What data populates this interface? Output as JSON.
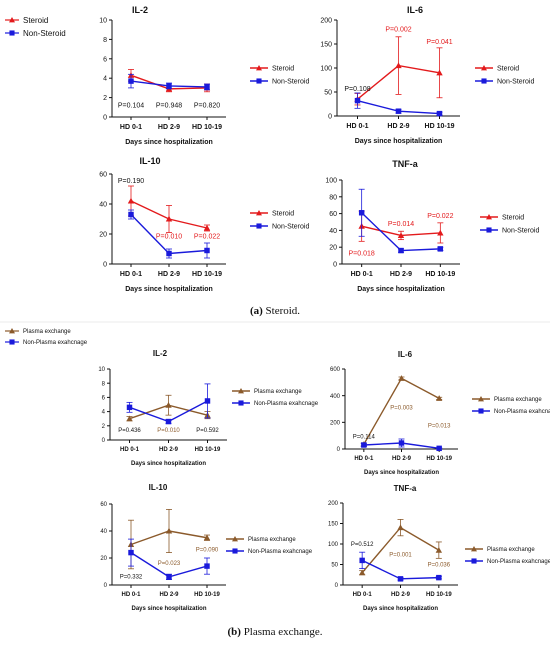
{
  "figure": {
    "caption_a_letter": "(a)",
    "caption_a_text": "Steroid.",
    "caption_b_letter": "(b)",
    "caption_b_text": "Plasma exchange.",
    "colors": {
      "red": "#e31a1c",
      "blue": "#1a1adb",
      "brown": "#8b5a2b"
    }
  },
  "top_legend": {
    "items": [
      "Steroid",
      "Non-Steroid"
    ]
  },
  "bottom_legend": {
    "items": [
      "Plasma exchange",
      "Non-Plasma exahcnage"
    ]
  },
  "chart_data": [
    {
      "type": "line",
      "id": "a-il2",
      "title": "IL-2",
      "xlabel": "Days since hospitalization",
      "categories": [
        "HD 0-1",
        "HD 2-9",
        "HD 10-19"
      ],
      "ylim": [
        0,
        10
      ],
      "yticks": [
        0,
        2,
        4,
        6,
        8,
        10
      ],
      "series": [
        {
          "name": "Steroid",
          "color": "#e31a1c",
          "marker": "triangle",
          "values": [
            4.3,
            2.9,
            3.0
          ],
          "err": [
            0.6,
            0.3,
            0.4
          ]
        },
        {
          "name": "Non-Steroid",
          "color": "#1a1adb",
          "marker": "square",
          "values": [
            3.7,
            3.2,
            3.1
          ],
          "err": [
            0.7,
            0.3,
            0.3
          ]
        }
      ],
      "pvalues": [
        {
          "text": "P=0.104",
          "cat": 0,
          "y": 1.0,
          "color": "#111111"
        },
        {
          "text": "P=0.948",
          "cat": 1,
          "y": 1.0,
          "color": "#111111"
        },
        {
          "text": "P=0.820",
          "cat": 2,
          "y": 1.0,
          "color": "#111111"
        }
      ],
      "legend": [
        "Steroid",
        "Non-Steroid"
      ]
    },
    {
      "type": "line",
      "id": "a-il6",
      "title": "IL-6",
      "xlabel": "Days since hospitalization",
      "categories": [
        "HD 0-1",
        "HD 2-9",
        "HD 10-19"
      ],
      "ylim": [
        0,
        200
      ],
      "yticks": [
        0,
        50,
        100,
        150,
        200
      ],
      "series": [
        {
          "name": "Steroid",
          "color": "#e31a1c",
          "marker": "triangle",
          "values": [
            35,
            105,
            90
          ],
          "err": [
            12,
            60,
            52
          ]
        },
        {
          "name": "Non-Steroid",
          "color": "#1a1adb",
          "marker": "square",
          "values": [
            32,
            10,
            5
          ],
          "err": [
            16,
            4,
            3
          ]
        }
      ],
      "pvalues": [
        {
          "text": "P=0.108",
          "cat": 0,
          "y": 52,
          "color": "#111111"
        },
        {
          "text": "P=0.002",
          "cat": 1,
          "y": 176,
          "color": "#e31a1c"
        },
        {
          "text": "P=0.041",
          "cat": 2,
          "y": 150,
          "color": "#e31a1c"
        }
      ],
      "legend": [
        "Steroid",
        "Non-Steroid"
      ]
    },
    {
      "type": "line",
      "id": "a-il10",
      "title": "IL-10",
      "xlabel": "Days since hospitalization",
      "categories": [
        "HD 0-1",
        "HD 2-9",
        "HD 10-19"
      ],
      "ylim": [
        0,
        60
      ],
      "yticks": [
        0,
        20,
        40,
        60
      ],
      "series": [
        {
          "name": "Steroid",
          "color": "#e31a1c",
          "marker": "triangle",
          "values": [
            42,
            30,
            24
          ],
          "err": [
            10,
            9,
            2
          ]
        },
        {
          "name": "Non-Steroid",
          "color": "#1a1adb",
          "marker": "square",
          "values": [
            33,
            7,
            9
          ],
          "err": [
            3,
            3,
            5
          ]
        }
      ],
      "pvalues": [
        {
          "text": "P=0.190",
          "cat": 0,
          "y": 54,
          "color": "#111111"
        },
        {
          "text": "P=0.010",
          "cat": 1,
          "y": 17,
          "color": "#e31a1c"
        },
        {
          "text": "P=0.022",
          "cat": 2,
          "y": 17,
          "color": "#e31a1c"
        }
      ],
      "legend": [
        "Steroid",
        "Non-Steroid"
      ]
    },
    {
      "type": "line",
      "id": "a-tnf",
      "title": "TNF-a",
      "xlabel": "Days since hospitalization",
      "categories": [
        "HD 0-1",
        "HD 2-9",
        "HD 10-19"
      ],
      "ylim": [
        0,
        100
      ],
      "yticks": [
        0,
        20,
        40,
        60,
        80,
        100
      ],
      "series": [
        {
          "name": "Steroid",
          "color": "#e31a1c",
          "marker": "triangle",
          "values": [
            45,
            34,
            37
          ],
          "err": [
            18,
            5,
            12
          ]
        },
        {
          "name": "Non-Steroid",
          "color": "#1a1adb",
          "marker": "square",
          "values": [
            61,
            16,
            18
          ],
          "err": [
            28,
            2,
            2
          ]
        }
      ],
      "pvalues": [
        {
          "text": "P=0.018",
          "cat": 0,
          "y": 10,
          "color": "#e31a1c"
        },
        {
          "text": "P=0.014",
          "cat": 1,
          "y": 45,
          "color": "#e31a1c"
        },
        {
          "text": "P=0.022",
          "cat": 2,
          "y": 55,
          "color": "#e31a1c"
        }
      ],
      "legend": [
        "Steroid",
        "Non-Steroid"
      ]
    },
    {
      "type": "line",
      "id": "b-il2",
      "title": "IL-2",
      "xlabel": "Days since hospitalization",
      "categories": [
        "HD 0-1",
        "HD 2-9",
        "HD 10-19"
      ],
      "ylim": [
        0,
        10
      ],
      "yticks": [
        0,
        2,
        4,
        6,
        8,
        10
      ],
      "series": [
        {
          "name": "Plasma exchange",
          "color": "#8b5a2b",
          "marker": "triangle",
          "values": [
            3.0,
            4.9,
            3.5
          ],
          "err": [
            0.3,
            1.4,
            0.5
          ]
        },
        {
          "name": "Non-Plasma exahcnage",
          "color": "#1a1adb",
          "marker": "square",
          "values": [
            4.6,
            2.6,
            5.5
          ],
          "err": [
            0.7,
            0.3,
            2.4
          ]
        }
      ],
      "pvalues": [
        {
          "text": "P=0.436",
          "cat": 0,
          "y": 1.1,
          "color": "#111111"
        },
        {
          "text": "P=0.010",
          "cat": 1,
          "y": 1.1,
          "color": "#8b5a2b"
        },
        {
          "text": "P=0.592",
          "cat": 2,
          "y": 1.1,
          "color": "#111111"
        }
      ],
      "legend": [
        "Plasma exchange",
        "Non-Plasma exahcnage"
      ]
    },
    {
      "type": "line",
      "id": "b-il6",
      "title": "IL-6",
      "xlabel": "Days since hospitalization",
      "categories": [
        "HD 0-1",
        "HD 2-9",
        "HD 10-19"
      ],
      "ylim": [
        0,
        600
      ],
      "yticks": [
        0,
        200,
        400,
        600
      ],
      "series": [
        {
          "name": "Plasma exchange",
          "color": "#8b5a2b",
          "marker": "triangle",
          "values": [
            35,
            530,
            380
          ],
          "err": [
            10,
            10,
            8
          ]
        },
        {
          "name": "Non-Plasma exahcnage",
          "color": "#1a1adb",
          "marker": "square",
          "values": [
            30,
            45,
            5
          ],
          "err": [
            10,
            30,
            3
          ]
        }
      ],
      "pvalues": [
        {
          "text": "P=0.114",
          "cat": 0,
          "y": 80,
          "color": "#111111"
        },
        {
          "text": "P=0.003",
          "cat": 1,
          "y": 295,
          "color": "#8b5a2b"
        },
        {
          "text": "P=0.013",
          "cat": 2,
          "y": 160,
          "color": "#8b5a2b"
        }
      ],
      "legend": [
        "Plasma exchange",
        "Non-Plasma exahcnage"
      ]
    },
    {
      "type": "line",
      "id": "b-il10",
      "title": "IL-10",
      "xlabel": "Days since hospitalization",
      "categories": [
        "HD 0-1",
        "HD 2-9",
        "HD 10-19"
      ],
      "ylim": [
        0,
        60
      ],
      "yticks": [
        0,
        20,
        40,
        60
      ],
      "series": [
        {
          "name": "Plasma exchange",
          "color": "#8b5a2b",
          "marker": "triangle",
          "values": [
            30,
            40,
            35
          ],
          "err": [
            18,
            16,
            2
          ]
        },
        {
          "name": "Non-Plasma exahcnage",
          "color": "#1a1adb",
          "marker": "square",
          "values": [
            24,
            6,
            14
          ],
          "err": [
            10,
            2,
            6
          ]
        }
      ],
      "pvalues": [
        {
          "text": "P=0.332",
          "cat": 0,
          "y": 5,
          "color": "#111111"
        },
        {
          "text": "P=0.023",
          "cat": 1,
          "y": 15,
          "color": "#8b5a2b"
        },
        {
          "text": "P=0.090",
          "cat": 2,
          "y": 25,
          "color": "#8b5a2b"
        }
      ],
      "legend": [
        "Plasma exchange",
        "Non-Plasma exahcnage"
      ]
    },
    {
      "type": "line",
      "id": "b-tnf",
      "title": "TNF-a",
      "xlabel": "Days since hospitalization",
      "categories": [
        "HD 0-1",
        "HD 2-9",
        "HD 10-19"
      ],
      "ylim": [
        0,
        200
      ],
      "yticks": [
        0,
        50,
        100,
        150,
        200
      ],
      "series": [
        {
          "name": "Plasma exchange",
          "color": "#8b5a2b",
          "marker": "triangle",
          "values": [
            30,
            140,
            85
          ],
          "err": [
            5,
            20,
            20
          ]
        },
        {
          "name": "Non-Plasma exahcnage",
          "color": "#1a1adb",
          "marker": "square",
          "values": [
            60,
            15,
            18
          ],
          "err": [
            20,
            3,
            3
          ]
        }
      ],
      "pvalues": [
        {
          "text": "P=0.512",
          "cat": 0,
          "y": 95,
          "color": "#111111"
        },
        {
          "text": "P=0.001",
          "cat": 1,
          "y": 70,
          "color": "#8b5a2b"
        },
        {
          "text": "P=0.036",
          "cat": 2,
          "y": 45,
          "color": "#8b5a2b"
        }
      ],
      "legend": [
        "Plasma exchange",
        "Non-Plasma exahcnage"
      ]
    }
  ]
}
